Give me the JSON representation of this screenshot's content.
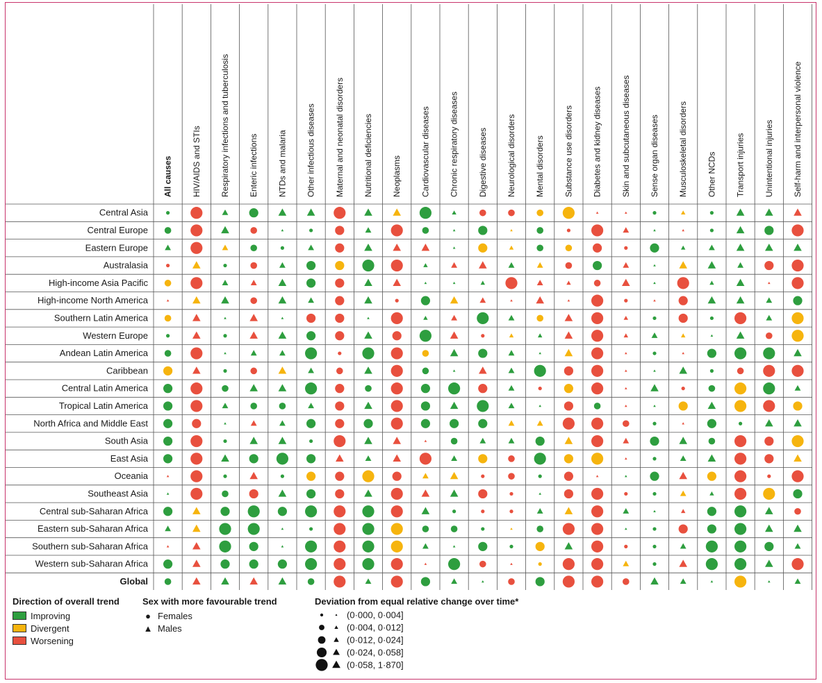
{
  "chart_data": {
    "type": "heatmap",
    "title": "",
    "columns": [
      "All causes",
      "HIV/AIDS and STIs",
      "Respiratory infections and tuberculosis",
      "Enteric infections",
      "NTDs and malaria",
      "Other infectious diseases",
      "Maternal and neonatal disorders",
      "Nutritional deficiencies",
      "Neoplasms",
      "Cardiovascular diseases",
      "Chronic respiratory diseases",
      "Digestive diseases",
      "Neurological disorders",
      "Mental disorders",
      "Substance use disorders",
      "Diabetes and kidney diseases",
      "Skin and subcutaneous diseases",
      "Sense organ diseases",
      "Musculoskeletal disorders",
      "Other NCDs",
      "Transport injuries",
      "Unintentional injuries",
      "Self-harm and interpersonal violence"
    ],
    "rows": [
      "Central Asia",
      "Central Europe",
      "Eastern Europe",
      "Australasia",
      "High-income Asia Pacific",
      "High-income North America",
      "Southern Latin America",
      "Western Europe",
      "Andean Latin America",
      "Caribbean",
      "Central Latin America",
      "Tropical Latin America",
      "North Africa and Middle East",
      "South Asia",
      "East Asia",
      "Oceania",
      "Southeast Asia",
      "Central sub-Saharan Africa",
      "Eastern sub-Saharan Africa",
      "Southern sub-Saharan Africa",
      "Western sub-Saharan Africa",
      "Global"
    ],
    "bold_rows": [
      "Global"
    ],
    "bold_columns": [
      "All causes"
    ],
    "cell_encoding": "each cell is a 3-character code: colour (G=Improving, Y=Divergent, R=Worsening), shape (c=Females, t=Males), size class 1-5",
    "cells": [
      [
        "Gc1",
        "Rc4",
        "Gt3",
        "Gc3",
        "Gt4",
        "Gt4",
        "Rc4",
        "Gt4",
        "Yt4",
        "Gc4",
        "Gt2",
        "Rc2",
        "Rc2",
        "Yc2",
        "Yc4",
        "Rt1",
        "Rt1",
        "Gc1",
        "Yt2",
        "Gc1",
        "Gt4",
        "Gt4",
        "Rt4"
      ],
      [
        "Gc2",
        "Rc4",
        "Gt4",
        "Rc2",
        "Gt1",
        "Gc1",
        "Rc3",
        "Gt3",
        "Rc4",
        "Gc2",
        "Gt1",
        "Gc3",
        "Yt1",
        "Gc2",
        "Rc1",
        "Rc4",
        "Rt3",
        "Gt1",
        "Rt1",
        "Gc1",
        "Gt4",
        "Gc3",
        "Rc4"
      ],
      [
        "Gt3",
        "Rc4",
        "Yt3",
        "Gc2",
        "Gc1",
        "Gt3",
        "Rc3",
        "Gt4",
        "Rt4",
        "Rt4",
        "Gt1",
        "Yc3",
        "Yt2",
        "Gc2",
        "Yc2",
        "Rc3",
        "Rc1",
        "Gc3",
        "Gt2",
        "Gt3",
        "Gt4",
        "Gt4",
        "Gt4"
      ],
      [
        "Rc1",
        "Yt4",
        "Gc1",
        "Rc2",
        "Gt3",
        "Gc3",
        "Yc3",
        "Gc4",
        "Rc4",
        "Gt2",
        "Rt3",
        "Rt4",
        "Gt3",
        "Yt3",
        "Rc2",
        "Gc3",
        "Rt3",
        "Gt1",
        "Yt4",
        "Gt4",
        "Gt3",
        "Rc3",
        "Rc4"
      ],
      [
        "Yc2",
        "Rc4",
        "Gt3",
        "Rt3",
        "Gt4",
        "Gc3",
        "Rc3",
        "Gt4",
        "Rt4",
        "Gt1",
        "Gt1",
        "Gt2",
        "Rc4",
        "Rt3",
        "Rt2",
        "Rc2",
        "Rt4",
        "Gt1",
        "Rc4",
        "Gt2",
        "Gt4",
        "Rt1",
        "Rc4"
      ],
      [
        "Rt1",
        "Yt4",
        "Gt4",
        "Rc2",
        "Gt4",
        "Gt3",
        "Rc3",
        "Gt4",
        "Rc1",
        "Gc3",
        "Yt4",
        "Rt3",
        "Rt1",
        "Rt4",
        "Rt1",
        "Rc4",
        "Rc1",
        "Rt1",
        "Rc3",
        "Gt4",
        "Gt4",
        "Gt3",
        "Gc3"
      ],
      [
        "Yc2",
        "Rt4",
        "Gt1",
        "Rt4",
        "Gt1",
        "Rc3",
        "Rc3",
        "Gt1",
        "Rc4",
        "Gt2",
        "Rt3",
        "Gc4",
        "Gt3",
        "Yc2",
        "Rt4",
        "Rc4",
        "Rt2",
        "Gc1",
        "Rc3",
        "Gc1",
        "Rc4",
        "Gt3",
        "Yc4"
      ],
      [
        "Gc1",
        "Rt4",
        "Gc1",
        "Rt4",
        "Gt4",
        "Gc3",
        "Rc3",
        "Gt4",
        "Rc3",
        "Gc4",
        "Rt4",
        "Rc1",
        "Yt2",
        "Gt2",
        "Rt4",
        "Rc4",
        "Rt2",
        "Gt3",
        "Yt2",
        "Gt1",
        "Gt4",
        "Rc2",
        "Yc4"
      ],
      [
        "Gc2",
        "Rc4",
        "Gt1",
        "Gt3",
        "Gt3",
        "Gc4",
        "Rc1",
        "Gc4",
        "Rc4",
        "Yc2",
        "Gt4",
        "Gc3",
        "Gt3",
        "Gt1",
        "Yt4",
        "Rc4",
        "Rt1",
        "Gc1",
        "Rt1",
        "Gc3",
        "Gc4",
        "Gc4",
        "Gt4"
      ],
      [
        "Yc3",
        "Rt4",
        "Gc1",
        "Rc2",
        "Yt4",
        "Gt3",
        "Rc2",
        "Gt4",
        "Rc4",
        "Gc2",
        "Gt1",
        "Rt4",
        "Gt3",
        "Gc4",
        "Rc3",
        "Rc4",
        "Rt1",
        "Gt1",
        "Gt4",
        "Gc1",
        "Rc2",
        "Rc4",
        "Rc4"
      ],
      [
        "Gc3",
        "Rc4",
        "Gc2",
        "Gt4",
        "Gt4",
        "Gc4",
        "Rc3",
        "Gc2",
        "Rc4",
        "Gc3",
        "Gc4",
        "Rc3",
        "Gt3",
        "Rc1",
        "Yc3",
        "Rc4",
        "Rt1",
        "Gt4",
        "Rc1",
        "Gc2",
        "Yc4",
        "Gc4",
        "Gt3"
      ],
      [
        "Gc3",
        "Rc4",
        "Gt3",
        "Gc2",
        "Gc2",
        "Gt3",
        "Rc3",
        "Gt4",
        "Rc4",
        "Gc3",
        "Gt4",
        "Gc4",
        "Gt3",
        "Gt1",
        "Rc3",
        "Gc2",
        "Rt1",
        "Gt1",
        "Yc3",
        "Gt4",
        "Yc4",
        "Rc4",
        "Yc3"
      ],
      [
        "Gc3",
        "Rc3",
        "Gt1",
        "Rt3",
        "Gt3",
        "Gc3",
        "Rc3",
        "Gc3",
        "Rc4",
        "Gc3",
        "Gc3",
        "Gc3",
        "Yt3",
        "Yt3",
        "Rc4",
        "Rc4",
        "Rc2",
        "Gc1",
        "Rt1",
        "Gc3",
        "Gc1",
        "Gt4",
        "Gt4"
      ],
      [
        "Gc3",
        "Rc4",
        "Gc1",
        "Gt4",
        "Gt4",
        "Gc1",
        "Rc4",
        "Gt4",
        "Rt4",
        "Rt1",
        "Gc2",
        "Gt3",
        "Gt3",
        "Gc3",
        "Yt4",
        "Rc4",
        "Rt3",
        "Gc3",
        "Gt4",
        "Gc2",
        "Rc4",
        "Rc3",
        "Yc4"
      ],
      [
        "Gc3",
        "Rc4",
        "Gt4",
        "Gc3",
        "Gc4",
        "Gc3",
        "Rt4",
        "Gt3",
        "Rt4",
        "Rc4",
        "Gt3",
        "Yc3",
        "Rc2",
        "Gc4",
        "Yc3",
        "Yc4",
        "Rt1",
        "Gc1",
        "Gt3",
        "Gt4",
        "Rc4",
        "Rc3",
        "Yt4"
      ],
      [
        "Rt1",
        "Rc4",
        "Gc1",
        "Rt4",
        "Gc1",
        "Yc3",
        "Rc3",
        "Yc4",
        "Rc3",
        "Yt3",
        "Yt4",
        "Rc1",
        "Rc2",
        "Gc1",
        "Rc3",
        "Rt1",
        "Gt1",
        "Gc3",
        "Rt4",
        "Yc3",
        "Rc4",
        "Rc1",
        "Rc4"
      ],
      [
        "Gt1",
        "Rc4",
        "Gc2",
        "Rc3",
        "Gt4",
        "Gc3",
        "Rc3",
        "Gt4",
        "Rc4",
        "Rt4",
        "Gt4",
        "Rc3",
        "Rc1",
        "Gt1",
        "Rc3",
        "Rc4",
        "Rc1",
        "Gc1",
        "Yt3",
        "Gt2",
        "Rc4",
        "Yc4",
        "Gc3"
      ],
      [
        "Gc3",
        "Yt4",
        "Gc3",
        "Gc4",
        "Gc3",
        "Gc4",
        "Rc4",
        "Gc4",
        "Rc4",
        "Gt4",
        "Gc1",
        "Rc1",
        "Rc1",
        "Gt3",
        "Yt4",
        "Rc4",
        "Gt3",
        "Gt1",
        "Rt2",
        "Gc3",
        "Gc4",
        "Gt4",
        "Rc2"
      ],
      [
        "Gt3",
        "Yt4",
        "Gc4",
        "Gc4",
        "Gt1",
        "Gc1",
        "Rc4",
        "Gc4",
        "Yc4",
        "Gc2",
        "Gc2",
        "Gc1",
        "Yt1",
        "Gc2",
        "Rc4",
        "Rc4",
        "Gt1",
        "Gc1",
        "Rc3",
        "Gc3",
        "Gc4",
        "Gt4",
        "Gt4"
      ],
      [
        "Rt1",
        "Rt4",
        "Gc4",
        "Gc3",
        "Gt1",
        "Gc4",
        "Rc4",
        "Gc4",
        "Yc4",
        "Gt3",
        "Gt1",
        "Gc3",
        "Gc1",
        "Yc3",
        "Gt4",
        "Rc4",
        "Rc1",
        "Gc1",
        "Gt3",
        "Gc4",
        "Gc4",
        "Gc3",
        "Gt3"
      ],
      [
        "Gc3",
        "Rt4",
        "Gc3",
        "Gc3",
        "Gc3",
        "Gc4",
        "Rc4",
        "Gc4",
        "Rc4",
        "Rt1",
        "Gc4",
        "Rc2",
        "Rt1",
        "Yc1",
        "Rc4",
        "Rc4",
        "Yt3",
        "Gc1",
        "Rt4",
        "Gc4",
        "Gc4",
        "Gt4",
        "Rc4"
      ],
      [
        "Gc2",
        "Rt4",
        "Gt4",
        "Rt4",
        "Gt4",
        "Gc2",
        "Rc4",
        "Gt3",
        "Rc4",
        "Gc3",
        "Gt3",
        "Gt1",
        "Rc2",
        "Gc3",
        "Rc4",
        "Rc4",
        "Rc2",
        "Gt4",
        "Gt3",
        "Gt1",
        "Yc4",
        "Gt1",
        "Gt3"
      ]
    ],
    "colors": {
      "Improving": "#2e9e3f",
      "Divergent": "#f6b40e",
      "Worsening": "#e8503e"
    }
  },
  "legend": {
    "direction": {
      "title": "Direction of overall trend",
      "items": [
        {
          "label": "Improving",
          "color": "#2e9e3f"
        },
        {
          "label": "Divergent",
          "color": "#f6b40e"
        },
        {
          "label": "Worsening",
          "color": "#e8503e"
        }
      ]
    },
    "sex": {
      "title": "Sex with more favourable trend",
      "items": [
        {
          "label": "Females",
          "icon": "circle-icon"
        },
        {
          "label": "Males",
          "icon": "triangle-icon"
        }
      ]
    },
    "deviation": {
      "title": "Deviation from equal relative change over time*",
      "items": [
        "(0·000, 0·004]",
        "(0·004, 0·012]",
        "(0·012, 0·024]",
        "(0·024, 0·058]",
        "(0·058, 1·870]"
      ]
    }
  }
}
